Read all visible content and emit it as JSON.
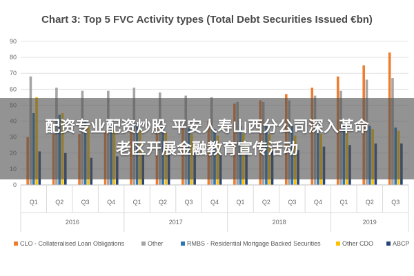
{
  "chart_data": {
    "type": "bar",
    "title": "Chart 3: Top 5 FVC Activity types (Total Debt Securities Issued €bn)",
    "ylim": [
      0,
      90
    ],
    "yticks": [
      0,
      10,
      20,
      30,
      40,
      50,
      60,
      70,
      80,
      90
    ],
    "grid": true,
    "legend_position": "bottom",
    "categories": [
      "Q1",
      "Q2",
      "Q3",
      "Q4",
      "Q1",
      "Q2",
      "Q3",
      "Q4",
      "Q1",
      "Q2",
      "Q3",
      "Q4",
      "Q1",
      "Q2",
      "Q3"
    ],
    "years": [
      {
        "label": "2016",
        "quarters": 4
      },
      {
        "label": "2017",
        "quarters": 4
      },
      {
        "label": "2018",
        "quarters": 4
      },
      {
        "label": "2019",
        "quarters": 3
      }
    ],
    "series": [
      {
        "name": "CLO - Collateralised Loan Obligations",
        "color": "#ed7d31",
        "values": [
          30,
          32,
          32,
          34,
          35,
          36,
          38,
          40,
          51,
          53,
          57,
          61,
          68,
          75,
          83
        ]
      },
      {
        "name": "Other",
        "color": "#a5a5a5",
        "values": [
          68,
          61,
          59,
          59,
          61,
          58,
          56,
          55,
          52,
          52,
          53,
          56,
          59,
          66,
          67
        ]
      },
      {
        "name": "RMBS - Residential Mortgage Backed Securities",
        "color": "#2e75b6",
        "values": [
          45,
          44,
          40,
          39,
          39,
          37,
          36,
          35,
          37,
          37,
          38,
          38,
          38,
          37,
          36
        ]
      },
      {
        "name": "Other CDO",
        "color": "#ffc000",
        "values": [
          55,
          45,
          37,
          35,
          34,
          33,
          32,
          31,
          32,
          32,
          31,
          32,
          34,
          35,
          34
        ]
      },
      {
        "name": "ABCP",
        "color": "#264478",
        "values": [
          21,
          20,
          17,
          18,
          19,
          19,
          20,
          20,
          21,
          22,
          22,
          24,
          25,
          26,
          26
        ]
      }
    ]
  },
  "overlay": {
    "line1": "配资专业配资炒股 平安人寿山西分公司深入革命",
    "line2": "老区开展金融教育宣传活动"
  }
}
